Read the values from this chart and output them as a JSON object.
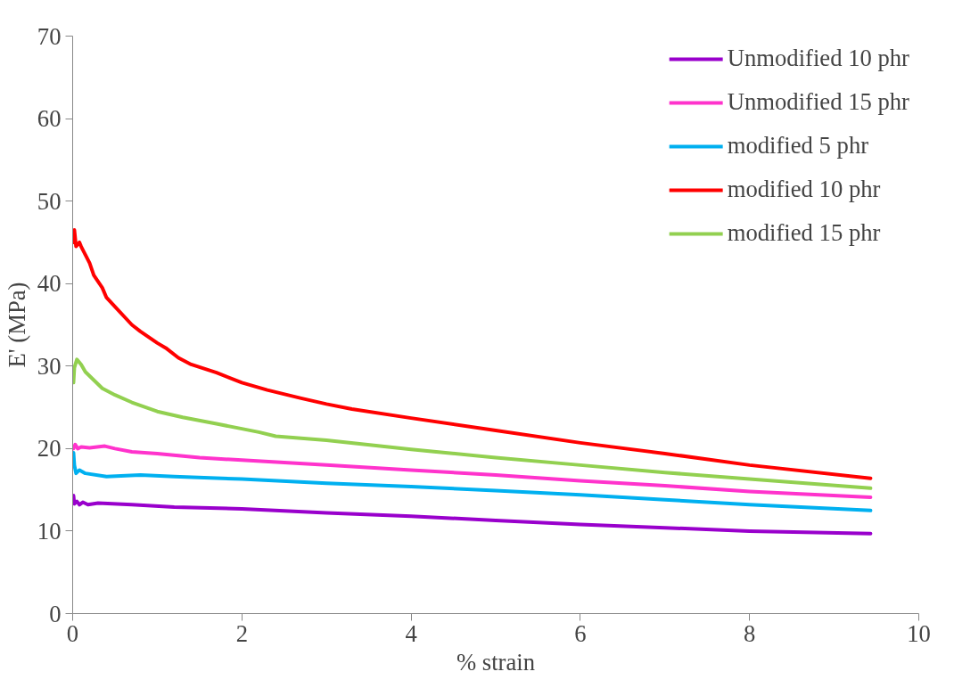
{
  "chart_data": {
    "type": "line",
    "xlabel": "% strain",
    "ylabel": "E' (MPa)",
    "xlim": [
      0,
      10
    ],
    "ylim": [
      0,
      70
    ],
    "xticks": [
      0,
      2,
      4,
      6,
      8,
      10
    ],
    "yticks": [
      0,
      10,
      20,
      30,
      40,
      50,
      60,
      70
    ],
    "grid": false,
    "legend": "top right",
    "marker": "none",
    "line_style": "solid",
    "series": [
      {
        "name": "Unmodified 10 phr",
        "color": "#9900cc",
        "x": [
          0.01,
          0.02,
          0.05,
          0.08,
          0.12,
          0.18,
          0.3,
          0.7,
          1.2,
          2,
          3,
          4,
          5,
          6,
          7,
          8,
          9.43
        ],
        "values": [
          14.3,
          13.3,
          13.6,
          13.2,
          13.5,
          13.2,
          13.4,
          13.2,
          12.9,
          12.7,
          12.2,
          11.8,
          11.3,
          10.8,
          10.4,
          10,
          9.7
        ]
      },
      {
        "name": "Unmodified 15 phr",
        "color": "#ff33cc",
        "x": [
          0.01,
          0.03,
          0.06,
          0.1,
          0.2,
          0.38,
          0.5,
          0.7,
          1,
          1.5,
          2,
          3,
          4,
          5,
          6,
          7,
          8,
          9.43
        ],
        "values": [
          20,
          20.5,
          20,
          20.2,
          20.1,
          20.3,
          20,
          19.6,
          19.4,
          18.9,
          18.6,
          18,
          17.4,
          16.8,
          16.1,
          15.5,
          14.8,
          14.1
        ]
      },
      {
        "name": "modified 5 phr",
        "color": "#00b0f0",
        "x": [
          0.01,
          0.02,
          0.04,
          0.08,
          0.15,
          0.4,
          0.8,
          1.2,
          2,
          3,
          4,
          5,
          6,
          7,
          8,
          9.43
        ],
        "values": [
          19.5,
          18,
          17,
          17.4,
          17,
          16.6,
          16.8,
          16.6,
          16.3,
          15.8,
          15.4,
          14.9,
          14.4,
          13.8,
          13.2,
          12.5
        ]
      },
      {
        "name": "modified 10 phr",
        "color": "#ff0000",
        "x": [
          0.01,
          0.02,
          0.04,
          0.08,
          0.1,
          0.15,
          0.2,
          0.25,
          0.35,
          0.4,
          0.5,
          0.7,
          0.8,
          1.0,
          1.1,
          1.25,
          1.4,
          1.7,
          2.0,
          2.3,
          2.7,
          3.0,
          3.3,
          4,
          5,
          6,
          7,
          8,
          9.43
        ],
        "values": [
          45,
          46.5,
          44.5,
          45,
          44.5,
          43.5,
          42.5,
          41,
          39.5,
          38.3,
          37.2,
          35,
          34.2,
          32.8,
          32.2,
          31,
          30.2,
          29.2,
          28,
          27.1,
          26.1,
          25.4,
          24.8,
          23.7,
          22.2,
          20.7,
          19.4,
          18,
          16.4
        ]
      },
      {
        "name": "modified 15 phr",
        "color": "#92d050",
        "x": [
          0.01,
          0.02,
          0.05,
          0.1,
          0.15,
          0.25,
          0.35,
          0.5,
          0.7,
          1.0,
          1.3,
          1.7,
          2.0,
          2.2,
          2.4,
          3,
          4,
          5,
          6,
          7,
          8,
          9.43
        ],
        "values": [
          28,
          29.8,
          30.8,
          30.2,
          29.3,
          28.3,
          27.3,
          26.5,
          25.6,
          24.5,
          23.8,
          23,
          22.4,
          22,
          21.5,
          21,
          19.9,
          18.9,
          18,
          17.1,
          16.3,
          15.2
        ]
      }
    ]
  }
}
